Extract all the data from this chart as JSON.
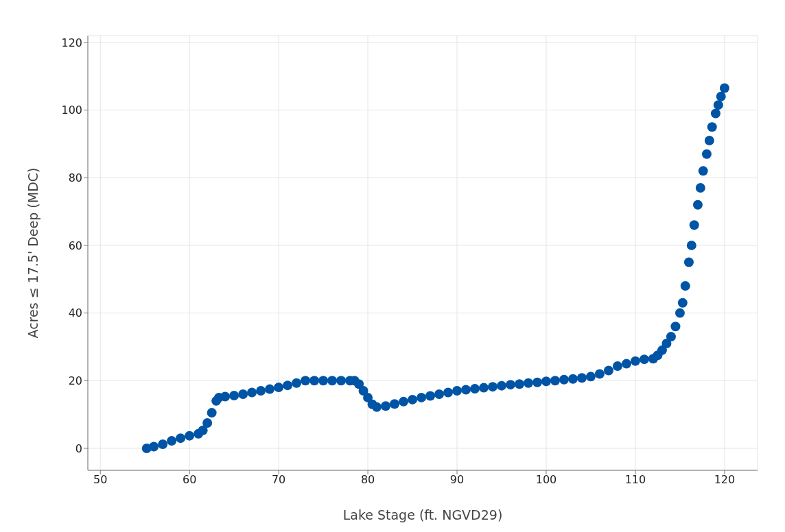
{
  "chart_data": {
    "type": "scatter",
    "xlabel": "Lake Stage (ft. NGVD29)",
    "ylabel": "Acres ≤ 17.5' Deep (MDC)",
    "x": [
      55.2,
      56,
      57,
      58,
      59,
      60,
      61,
      61.5,
      62,
      62.5,
      63,
      63.3,
      64,
      65,
      66,
      67,
      68,
      69,
      70,
      71,
      72,
      73,
      74,
      75,
      76,
      77,
      78,
      78.5,
      79,
      79.5,
      80,
      80.5,
      81,
      82,
      83,
      84,
      85,
      86,
      87,
      88,
      89,
      90,
      91,
      92,
      93,
      94,
      95,
      96,
      97,
      98,
      99,
      100,
      101,
      102,
      103,
      104,
      105,
      106,
      107,
      108,
      109,
      110,
      111,
      112,
      112.5,
      113,
      113.5,
      114,
      114.5,
      115,
      115.3,
      115.6,
      116,
      116.3,
      116.6,
      117,
      117.3,
      117.6,
      118,
      118.3,
      118.6,
      119,
      119.3,
      119.6,
      120
    ],
    "series": [
      {
        "color": "#0054a6",
        "values": [
          0,
          0.5,
          1.2,
          2.2,
          3,
          3.7,
          4.3,
          5.3,
          7.5,
          10.5,
          14,
          15,
          15.3,
          15.6,
          16,
          16.5,
          17,
          17.5,
          18,
          18.6,
          19.3,
          20,
          20,
          20,
          20,
          20,
          20,
          20,
          19,
          17,
          15,
          13,
          12.2,
          12.5,
          13.1,
          13.8,
          14.4,
          15,
          15.5,
          16,
          16.5,
          17,
          17.3,
          17.6,
          17.9,
          18.2,
          18.5,
          18.8,
          19,
          19.3,
          19.5,
          19.8,
          20,
          20.3,
          20.5,
          20.8,
          21.2,
          22,
          23,
          24.3,
          25,
          25.8,
          26.3,
          26.5,
          27.5,
          29,
          31,
          33,
          36,
          40,
          43,
          48,
          55,
          60,
          66,
          72,
          77,
          82,
          87,
          91,
          95,
          99,
          101.5,
          104,
          106.5
        ]
      }
    ],
    "xlim": [
      48.6,
      123.7
    ],
    "ylim": [
      -6.5,
      122
    ],
    "xticks": [
      50,
      60,
      70,
      80,
      90,
      100,
      110,
      120
    ],
    "yticks": [
      0,
      20,
      40,
      60,
      80,
      100,
      120
    ],
    "grid": true,
    "marker": "circle",
    "legend": false
  }
}
